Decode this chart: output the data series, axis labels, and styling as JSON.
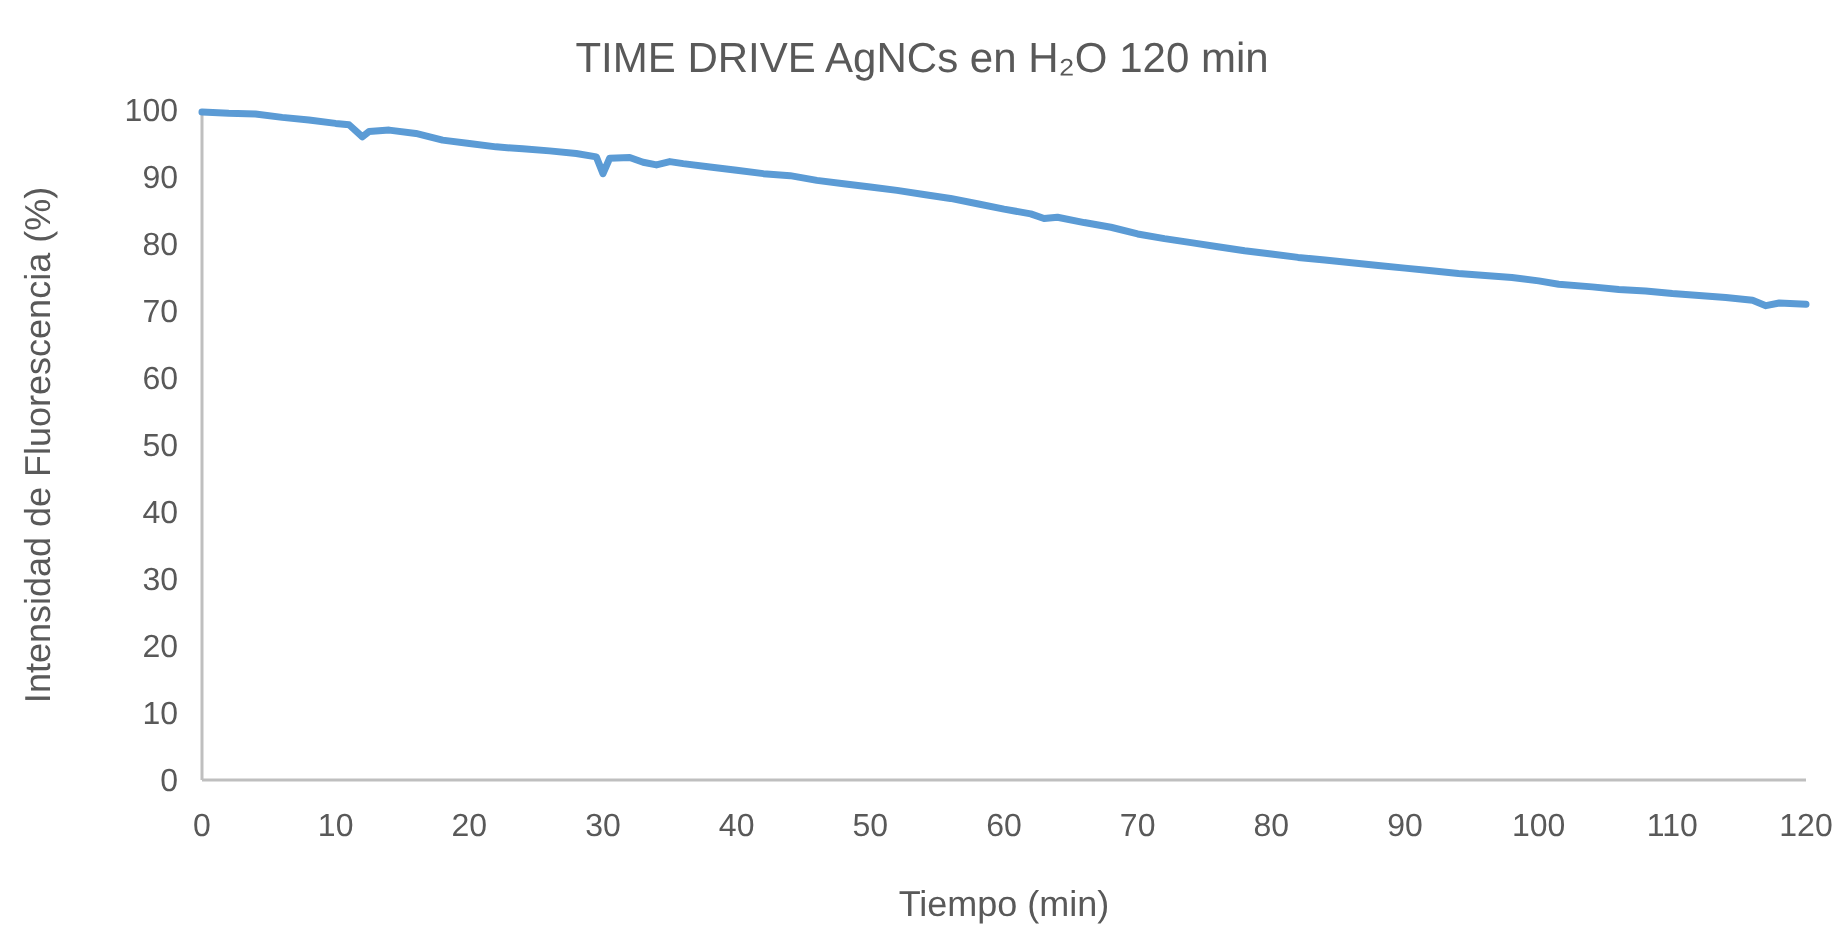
{
  "chart_data": {
    "type": "line",
    "title": "TIME DRIVE AgNCs en H₂O 120 min",
    "xlabel": "Tiempo (min)",
    "ylabel": "Intensidad de Fluorescencia (%)",
    "x": [
      0,
      2,
      4,
      6,
      8,
      10,
      11,
      12,
      12.5,
      14,
      16,
      18,
      20,
      22,
      24,
      26,
      28,
      29.5,
      30,
      30.5,
      32,
      33,
      34,
      35,
      36,
      38,
      40,
      42,
      44,
      46,
      48,
      50,
      52,
      54,
      56,
      58,
      60,
      62,
      63,
      64,
      66,
      68,
      70,
      72,
      74,
      76,
      78,
      80,
      82,
      84,
      86,
      88,
      90,
      92,
      94,
      96,
      98,
      100,
      101.5,
      104,
      106,
      108,
      110,
      112,
      114,
      116,
      117,
      118,
      120
    ],
    "series": [
      {
        "color": "#5b9bd5",
        "values": [
          99.7,
          99.5,
          99.4,
          98.9,
          98.5,
          98,
          97.8,
          96,
          96.8,
          97,
          96.5,
          95.5,
          95,
          94.5,
          94.2,
          93.9,
          93.5,
          93,
          90.5,
          92.8,
          92.9,
          92.2,
          91.8,
          92.3,
          92,
          91.5,
          91,
          90.5,
          90.2,
          89.5,
          89,
          88.5,
          88,
          87.4,
          86.8,
          86,
          85.2,
          84.5,
          83.8,
          84,
          83.2,
          82.5,
          81.5,
          80.8,
          80.2,
          79.6,
          79,
          78.5,
          78,
          77.6,
          77.2,
          76.8,
          76.4,
          76,
          75.6,
          75.3,
          75,
          74.5,
          74,
          73.6,
          73.2,
          73,
          72.6,
          72.3,
          72,
          71.6,
          70.8,
          71.2,
          71
        ]
      }
    ],
    "xlim": [
      0,
      120
    ],
    "xticks": [
      0,
      10,
      20,
      30,
      40,
      50,
      60,
      70,
      80,
      90,
      100,
      110,
      120
    ],
    "ylim": [
      0,
      100
    ],
    "yticks": [
      0,
      10,
      20,
      30,
      40,
      50,
      60,
      70,
      80,
      90,
      100
    ],
    "grid": false,
    "marker": "none",
    "line_style": "solid"
  }
}
